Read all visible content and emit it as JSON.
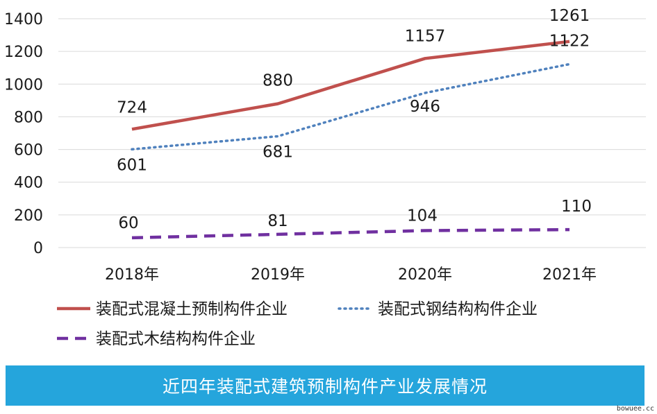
{
  "chart_data": {
    "type": "line",
    "categories": [
      "2018年",
      "2019年",
      "2020年",
      "2021年"
    ],
    "ylim": [
      0,
      1400
    ],
    "yticks": [
      0,
      200,
      400,
      600,
      800,
      1000,
      1200,
      1400
    ],
    "grid": "horizontal",
    "legend_position": "bottom",
    "series": [
      {
        "name": "装配式混凝土预制构件企业",
        "values": [
          724,
          880,
          1157,
          1261
        ],
        "color": "#c0504d",
        "style": "solid"
      },
      {
        "name": "装配式钢结构构件企业",
        "values": [
          601,
          681,
          946,
          1122
        ],
        "color": "#4f81bd",
        "style": "dotted"
      },
      {
        "name": "装配式木结构构件企业",
        "values": [
          60,
          81,
          104,
          110
        ],
        "color": "#7030a0",
        "style": "dashed"
      }
    ]
  },
  "banner": {
    "title": "近四年装配式建筑预制构件产业发展情况"
  },
  "watermark": {
    "text": "bowuee.cc"
  }
}
